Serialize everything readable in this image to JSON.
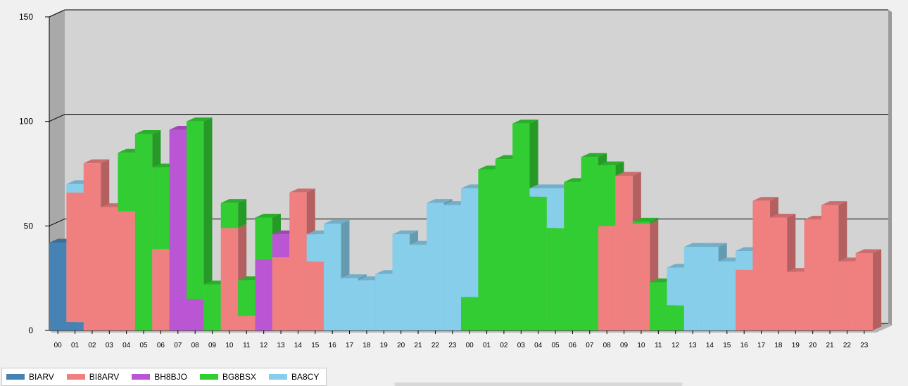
{
  "chart_data": {
    "type": "bar",
    "stacked": true,
    "three_d": true,
    "title": "",
    "xlabel": "",
    "ylabel": "",
    "ylim": [
      0,
      150
    ],
    "yticks": [
      0,
      50,
      100,
      150
    ],
    "grid": true,
    "legend_position": "bottom-left",
    "categories": [
      "00",
      "01",
      "02",
      "03",
      "04",
      "05",
      "06",
      "07",
      "08",
      "09",
      "10",
      "11",
      "12",
      "13",
      "14",
      "15",
      "16",
      "17",
      "18",
      "19",
      "20",
      "21",
      "22",
      "23",
      "00",
      "01",
      "02",
      "03",
      "04",
      "05",
      "06",
      "07",
      "08",
      "09",
      "10",
      "11",
      "12",
      "13",
      "14",
      "15",
      "16",
      "17",
      "18",
      "19",
      "20",
      "21",
      "22",
      "23"
    ],
    "series": [
      {
        "name": "BIARV",
        "color": "#4682b4",
        "values": [
          42,
          4,
          0,
          0,
          0,
          0,
          0,
          0,
          0,
          0,
          0,
          0,
          0,
          0,
          0,
          0,
          0,
          0,
          0,
          0,
          0,
          0,
          0,
          0,
          0,
          0,
          0,
          0,
          0,
          0,
          0,
          0,
          0,
          0,
          0,
          0,
          0,
          0,
          0,
          0,
          0,
          0,
          0,
          0,
          0,
          0,
          0,
          0
        ]
      },
      {
        "name": "BI8ARV",
        "color": "#f08080",
        "values": [
          0,
          62,
          80,
          59,
          57,
          0,
          39,
          0,
          0,
          0,
          49,
          7,
          0,
          35,
          66,
          33,
          0,
          0,
          0,
          0,
          0,
          0,
          0,
          0,
          0,
          0,
          0,
          0,
          0,
          0,
          0,
          0,
          50,
          74,
          51,
          0,
          0,
          0,
          0,
          0,
          29,
          62,
          54,
          28,
          53,
          60,
          33,
          37
        ]
      },
      {
        "name": "BH8BJO",
        "color": "#ba55d3",
        "values": [
          0,
          0,
          0,
          0,
          0,
          0,
          0,
          96,
          15,
          0,
          0,
          0,
          34,
          11,
          0,
          0,
          0,
          0,
          0,
          0,
          0,
          0,
          0,
          0,
          0,
          0,
          0,
          0,
          0,
          0,
          0,
          0,
          0,
          0,
          0,
          0,
          0,
          0,
          0,
          0,
          0,
          0,
          0,
          0,
          0,
          0,
          0,
          0
        ]
      },
      {
        "name": "BG8BSX",
        "color": "#32cd32",
        "values": [
          0,
          0,
          0,
          0,
          28,
          94,
          39,
          0,
          85,
          22,
          12,
          17,
          20,
          0,
          0,
          0,
          0,
          0,
          0,
          0,
          0,
          0,
          0,
          0,
          16,
          77,
          82,
          99,
          64,
          49,
          71,
          83,
          29,
          0,
          1,
          23,
          12,
          0,
          0,
          0,
          0,
          0,
          0,
          0,
          0,
          0,
          0,
          0
        ]
      },
      {
        "name": "BA8CY",
        "color": "#87ceeb",
        "values": [
          0,
          4,
          0,
          0,
          0,
          0,
          0,
          0,
          0,
          0,
          0,
          0,
          0,
          0,
          0,
          13,
          51,
          25,
          24,
          27,
          46,
          41,
          61,
          60,
          52,
          0,
          0,
          0,
          4,
          19,
          0,
          0,
          0,
          0,
          0,
          0,
          18,
          40,
          40,
          33,
          9,
          0,
          0,
          0,
          0,
          0,
          0,
          0
        ]
      }
    ]
  }
}
